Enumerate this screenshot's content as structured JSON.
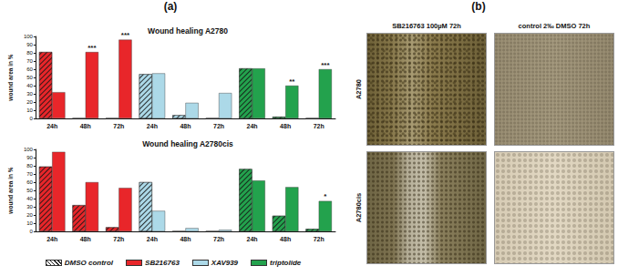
{
  "chart_data": [
    {
      "type": "bar",
      "title": "Wound healing A2780",
      "ylabel": "wound area in %",
      "categories": [
        "24h",
        "48h",
        "72h",
        "24h",
        "48h",
        "72h",
        "24h",
        "48h",
        "72h"
      ],
      "ylim": [
        0,
        100
      ],
      "yticks": [
        0,
        10,
        20,
        30,
        40,
        50,
        60,
        70,
        80,
        90,
        100
      ],
      "grid": false,
      "series": [
        {
          "name": "DMSO control",
          "colors": [
            "#e8262a",
            "#e8262a",
            "#e8262a",
            "#acd9e8",
            "#acd9e8",
            "#acd9e8",
            "#23a24d",
            "#23a24d",
            "#23a24d"
          ],
          "values": [
            81,
            0,
            0,
            54,
            4,
            0,
            61,
            2,
            0
          ]
        },
        {
          "name": "SB216763",
          "color": "#e8262a",
          "values": [
            32,
            81,
            96,
            null,
            null,
            null,
            null,
            null,
            null
          ]
        },
        {
          "name": "XAV939",
          "color": "#acd9e8",
          "values": [
            null,
            null,
            null,
            55,
            19,
            31,
            null,
            null,
            null
          ]
        },
        {
          "name": "triptolide",
          "color": "#23a24d",
          "values": [
            null,
            null,
            null,
            null,
            null,
            null,
            61,
            40,
            60
          ]
        }
      ],
      "annotations": [
        {
          "series": "SB216763",
          "index": 1,
          "text": "***"
        },
        {
          "series": "SB216763",
          "index": 2,
          "text": "***"
        },
        {
          "series": "triptolide",
          "index": 7,
          "text": "**"
        },
        {
          "series": "triptolide",
          "index": 8,
          "text": "***"
        }
      ]
    },
    {
      "type": "bar",
      "title": "Wound healing A2780cis",
      "ylabel": "wound area in %",
      "categories": [
        "24h",
        "48h",
        "72h",
        "24h",
        "48h",
        "72h",
        "24h",
        "48h",
        "72h"
      ],
      "ylim": [
        0,
        100
      ],
      "yticks": [
        0,
        10,
        20,
        30,
        40,
        50,
        60,
        70,
        80,
        90,
        100
      ],
      "grid": false,
      "legend": "bottom",
      "series": [
        {
          "name": "DMSO control",
          "colors": [
            "#e8262a",
            "#e8262a",
            "#e8262a",
            "#acd9e8",
            "#acd9e8",
            "#acd9e8",
            "#23a24d",
            "#23a24d",
            "#23a24d"
          ],
          "values": [
            79,
            32,
            5,
            60,
            0,
            0,
            76,
            19,
            3
          ]
        },
        {
          "name": "SB216763",
          "color": "#e8262a",
          "values": [
            97,
            60,
            53,
            null,
            null,
            null,
            null,
            null,
            null
          ]
        },
        {
          "name": "XAV939",
          "color": "#acd9e8",
          "values": [
            null,
            null,
            null,
            25,
            4,
            2,
            null,
            null,
            null
          ]
        },
        {
          "name": "triptolide",
          "color": "#23a24d",
          "values": [
            null,
            null,
            null,
            null,
            null,
            null,
            62,
            54,
            37
          ]
        }
      ],
      "annotations": [
        {
          "series": "triptolide",
          "index": 8,
          "text": "*"
        }
      ]
    }
  ],
  "panel_labels": [
    "(a)",
    "(b)"
  ],
  "images": {
    "columns": [
      "SB216763 100µM 72h",
      "control 2‰ DMSO 72h"
    ],
    "rows": [
      "A2780",
      "A2780cis"
    ]
  }
}
